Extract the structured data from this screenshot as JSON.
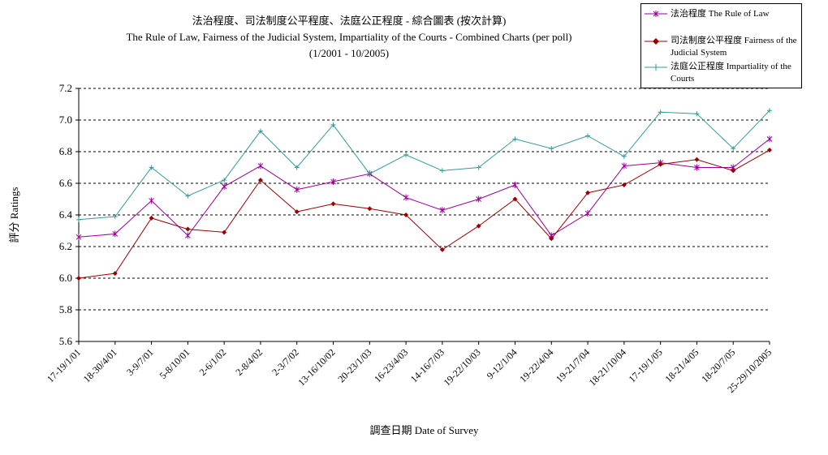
{
  "chart_data": {
    "type": "line",
    "title": "法治程度、司法制度公平程度、法庭公正程度 - 綜合圖表 (按次計算)",
    "subtitle": "The Rule of Law, Fairness of the Judicial System, Impartiality of the Courts - Combined Charts (per poll)",
    "period": "(1/2001 - 10/2005)",
    "xlabel": "調查日期 Date of Survey",
    "ylabel": "評分 Ratings",
    "ylim": [
      5.6,
      7.2
    ],
    "yticks": [
      "5.6",
      "5.8",
      "6.0",
      "6.2",
      "6.4",
      "6.6",
      "6.8",
      "7.0",
      "7.2"
    ],
    "grid": true,
    "legend_position": "top-right",
    "categories": [
      "17-19/1/01",
      "18-30/4/01",
      "3-9/7/01",
      "5-8/10/01",
      "2-6/1/02",
      "2-8/4/02",
      "2-3/7/02",
      "13-16/10/02",
      "20-23/1/03",
      "16-23/4/03",
      "14-16/7/03",
      "19-22/10/03",
      "9-12/1/04",
      "19-22/4/04",
      "19-21/7/04",
      "18-21/10/04",
      "17-19/1/05",
      "18-21/4/05",
      "18-20/7/05",
      "25-29/10/2005"
    ],
    "series": [
      {
        "name": "法治程度 The Rule of Law",
        "color": "#990099",
        "marker": "star",
        "values": [
          6.26,
          6.28,
          6.49,
          6.27,
          6.58,
          6.71,
          6.56,
          6.61,
          6.66,
          6.51,
          6.43,
          6.5,
          6.59,
          6.27,
          6.41,
          6.71,
          6.73,
          6.7,
          6.7,
          6.88
        ]
      },
      {
        "name": "司法制度公平程度 Fairness of the Judicial System",
        "color": "#990000",
        "marker": "diamond",
        "values": [
          6.0,
          6.03,
          6.38,
          6.31,
          6.29,
          6.62,
          6.42,
          6.47,
          6.44,
          6.4,
          6.18,
          6.33,
          6.5,
          6.25,
          6.54,
          6.59,
          6.72,
          6.75,
          6.68,
          6.81
        ]
      },
      {
        "name": "法庭公正程度 Impartiality of the Courts",
        "color": "#33999a",
        "marker": "plus",
        "values": [
          6.37,
          6.39,
          6.7,
          6.52,
          6.62,
          6.93,
          6.7,
          6.97,
          6.66,
          6.78,
          6.68,
          6.7,
          6.88,
          6.82,
          6.9,
          6.77,
          7.05,
          7.04,
          6.82,
          7.06
        ]
      }
    ]
  }
}
